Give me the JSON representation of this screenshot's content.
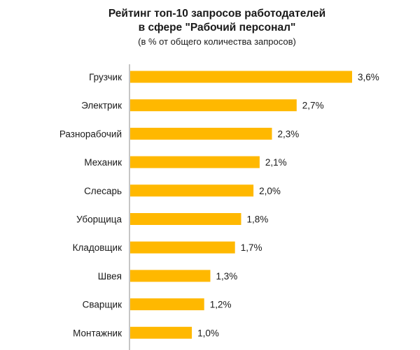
{
  "chart_data": {
    "type": "bar",
    "orientation": "horizontal",
    "title_line1": "Рейтинг топ-10 запросов работодателей",
    "title_line2": "в сфере \"Рабочий персонал\"",
    "subtitle": "(в % от общего количества запросов)",
    "categories": [
      "Грузчик",
      "Электрик",
      "Разнорабочий",
      "Механик",
      "Слесарь",
      "Уборщица",
      "Кладовщик",
      "Швея",
      "Сварщик",
      "Монтажник"
    ],
    "values": [
      3.6,
      2.7,
      2.3,
      2.1,
      2.0,
      1.8,
      1.7,
      1.3,
      1.2,
      1.0
    ],
    "value_labels": [
      "3,6%",
      "2,7%",
      "2,3%",
      "2,1%",
      "2,0%",
      "1,8%",
      "1,7%",
      "1,3%",
      "1,2%",
      "1,0%"
    ],
    "xlim": [
      0,
      3.6
    ],
    "bar_color": "#FFB800",
    "axis_color": "#8c8c8c",
    "grid": false,
    "legend": "none"
  }
}
